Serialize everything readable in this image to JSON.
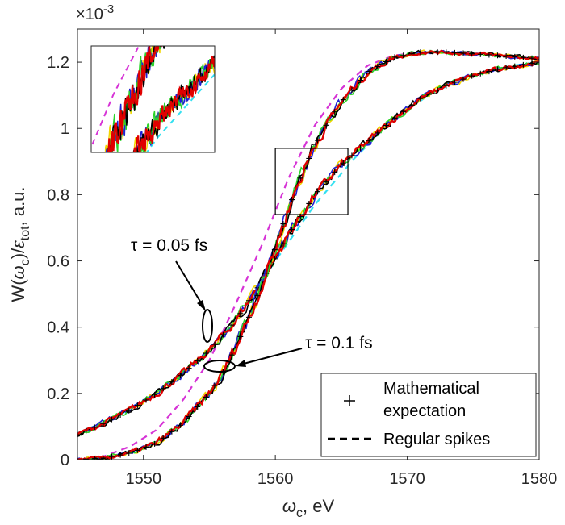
{
  "chart_data": {
    "type": "line",
    "xlabel": "ω_c, eV",
    "ylabel": "W(ω_c)/ε_tot, a.u.",
    "y_multiplier": "×10^-3",
    "xlim": [
      1545,
      1580
    ],
    "ylim": [
      0,
      1.3
    ],
    "x_ticks": [
      1550,
      1560,
      1570,
      1580
    ],
    "y_ticks": [
      0,
      0.2,
      0.4,
      0.6,
      0.8,
      1.0,
      1.2
    ],
    "x_tick_labels": [
      "1550",
      "1560",
      "1570",
      "1580"
    ],
    "y_tick_labels": [
      "0",
      "0.2",
      "0.4",
      "0.6",
      "0.8",
      "1",
      "1.2"
    ],
    "grid": false,
    "legend_position": "bottom-right",
    "legend": [
      {
        "label_line1": "Mathematical",
        "label_line2": "expectation",
        "marker": "+",
        "color": "#000000"
      },
      {
        "label": "Regular spikes",
        "style": "dashed",
        "color": "#000000"
      }
    ],
    "annotations": [
      {
        "text": "τ = 0.05 fs",
        "points_to": {
          "x": 1555,
          "y": 0.41
        }
      },
      {
        "text": "τ = 0.1 fs",
        "points_to": {
          "x": 1556,
          "y": 0.285
        }
      }
    ],
    "zoom_box": {
      "x_range": [
        1560,
        1565.5
      ],
      "y_range": [
        0.74,
        0.94
      ]
    },
    "colors": {
      "realization_red": "#e00000",
      "realization_blue": "#1f1fd6",
      "realization_green": "#2ad42a",
      "realization_yellow": "#f2d600",
      "realization_black": "#000000",
      "regular_cyan": "#33e0f0",
      "regular_magenta": "#d633d6"
    },
    "series": [
      {
        "name": "τ = 0.05 fs",
        "x": [
          1545,
          1547,
          1549,
          1551,
          1553,
          1555,
          1557,
          1559,
          1561,
          1563,
          1565,
          1567,
          1569,
          1571,
          1573,
          1575,
          1577,
          1580
        ],
        "y": [
          0.075,
          0.11,
          0.15,
          0.2,
          0.26,
          0.33,
          0.42,
          0.54,
          0.68,
          0.8,
          0.89,
          0.96,
          1.03,
          1.09,
          1.13,
          1.16,
          1.18,
          1.2
        ]
      },
      {
        "name": "τ = 0.1 fs",
        "x": [
          1545,
          1547,
          1549,
          1551,
          1553,
          1555,
          1556,
          1557,
          1558,
          1559,
          1560,
          1561,
          1562,
          1563,
          1564,
          1565,
          1567,
          1569,
          1571,
          1573,
          1575,
          1577,
          1580
        ],
        "y": [
          0.0,
          0.005,
          0.02,
          0.05,
          0.11,
          0.2,
          0.26,
          0.34,
          0.43,
          0.53,
          0.64,
          0.76,
          0.86,
          0.95,
          1.02,
          1.08,
          1.17,
          1.215,
          1.23,
          1.23,
          1.225,
          1.22,
          1.21
        ]
      },
      {
        "name": "Regular spikes τ = 0.05 fs",
        "x": [
          1545,
          1548,
          1551,
          1554,
          1557,
          1560,
          1563,
          1566,
          1569,
          1572,
          1575,
          1578,
          1580
        ],
        "y": [
          0.08,
          0.13,
          0.2,
          0.29,
          0.42,
          0.6,
          0.77,
          0.91,
          1.03,
          1.11,
          1.16,
          1.19,
          1.2
        ]
      },
      {
        "name": "Regular spikes τ = 0.1 fs",
        "x": [
          1545,
          1547,
          1549,
          1551,
          1553,
          1555,
          1557,
          1559,
          1561,
          1563,
          1565,
          1567,
          1569,
          1571,
          1573,
          1576,
          1580
        ],
        "y": [
          0.0,
          0.01,
          0.04,
          0.09,
          0.18,
          0.3,
          0.47,
          0.65,
          0.85,
          1.01,
          1.12,
          1.19,
          1.22,
          1.23,
          1.23,
          1.225,
          1.21
        ]
      }
    ]
  }
}
